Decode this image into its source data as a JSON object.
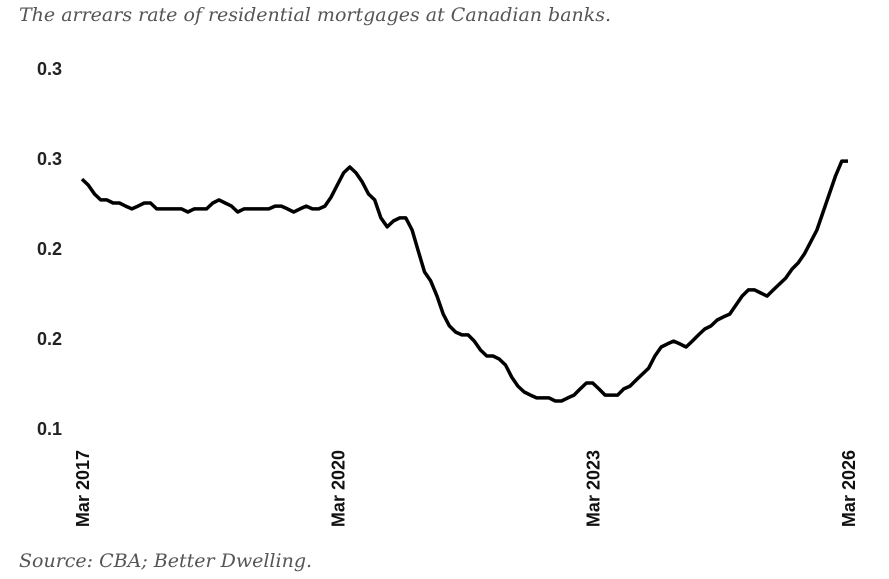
{
  "chart_data": {
    "type": "line",
    "title": "The arrears rate of residential mortgages at Canadian banks.",
    "source": "Source: CBA; Better Dwelling.",
    "xlabel": "",
    "ylabel": "",
    "x_start": "2017-03",
    "x_end": "2026-03",
    "x_tick_labels": [
      "Mar 2017",
      "Mar 2020",
      "Mar 2023",
      "Mar 2026"
    ],
    "y_tick_labels": [
      "0.3",
      "0.3",
      "0.2",
      "0.2",
      "0.1"
    ],
    "ylim": [
      0.14,
      0.34
    ],
    "grid": false,
    "legend": "none",
    "line_color": "#000000",
    "series": [
      {
        "values": [
          0.2783,
          0.275,
          0.27,
          0.2667,
          0.2667,
          0.265,
          0.265,
          0.2633,
          0.2617,
          0.2633,
          0.265,
          0.265,
          0.2617,
          0.2617,
          0.2617,
          0.2617,
          0.2617,
          0.26,
          0.2617,
          0.2617,
          0.2617,
          0.265,
          0.2667,
          0.265,
          0.2633,
          0.26,
          0.2617,
          0.2617,
          0.2617,
          0.2617,
          0.2617,
          0.2633,
          0.2633,
          0.2617,
          0.26,
          0.2617,
          0.2633,
          0.2617,
          0.2617,
          0.2633,
          0.2683,
          0.275,
          0.2817,
          0.285,
          0.2817,
          0.2767,
          0.27,
          0.2667,
          0.2567,
          0.2517,
          0.255,
          0.2567,
          0.2567,
          0.25,
          0.2383,
          0.2267,
          0.2217,
          0.2133,
          0.2033,
          0.1967,
          0.1933,
          0.1917,
          0.1917,
          0.1883,
          0.1833,
          0.18,
          0.18,
          0.1783,
          0.175,
          0.1683,
          0.1633,
          0.16,
          0.1583,
          0.1567,
          0.1567,
          0.1567,
          0.155,
          0.155,
          0.1567,
          0.1583,
          0.1617,
          0.165,
          0.165,
          0.1617,
          0.1583,
          0.1583,
          0.1583,
          0.1617,
          0.1633,
          0.1667,
          0.17,
          0.1733,
          0.18,
          0.185,
          0.1867,
          0.1883,
          0.1867,
          0.185,
          0.1883,
          0.1917,
          0.195,
          0.1967,
          0.2,
          0.2017,
          0.2033,
          0.2083,
          0.2133,
          0.2167,
          0.2167,
          0.215,
          0.2133,
          0.2167,
          0.22,
          0.2233,
          0.2283,
          0.2317,
          0.2367,
          0.2433,
          0.25,
          0.26,
          0.27,
          0.28,
          0.2883,
          0.2883
        ]
      }
    ]
  }
}
